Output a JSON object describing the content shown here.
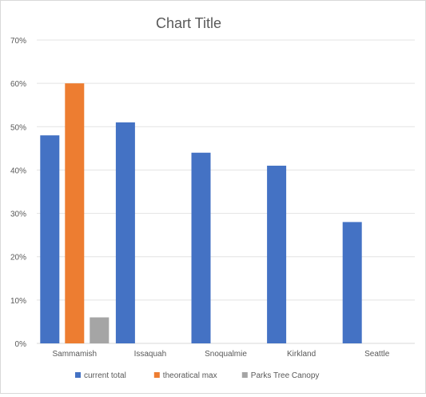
{
  "chart_data": {
    "type": "bar",
    "title": "Chart Title",
    "xlabel": "",
    "ylabel": "",
    "ylim": [
      0,
      0.7
    ],
    "y_ticks": [
      "0%",
      "10%",
      "20%",
      "30%",
      "40%",
      "50%",
      "60%",
      "70%"
    ],
    "grid": true,
    "legend_position": "bottom",
    "categories": [
      "Sammamish",
      "Issaquah",
      "Snoqualmie",
      "Kirkland",
      "Seattle"
    ],
    "series": [
      {
        "name": "current total",
        "color": "#4472C4",
        "values": [
          0.48,
          0.51,
          0.44,
          0.41,
          0.28
        ]
      },
      {
        "name": "theoratical max",
        "color": "#ED7D31",
        "values": [
          0.6,
          null,
          null,
          null,
          null
        ]
      },
      {
        "name": "Parks Tree Canopy",
        "color": "#A5A5A5",
        "values": [
          0.06,
          null,
          null,
          null,
          null
        ]
      }
    ]
  }
}
